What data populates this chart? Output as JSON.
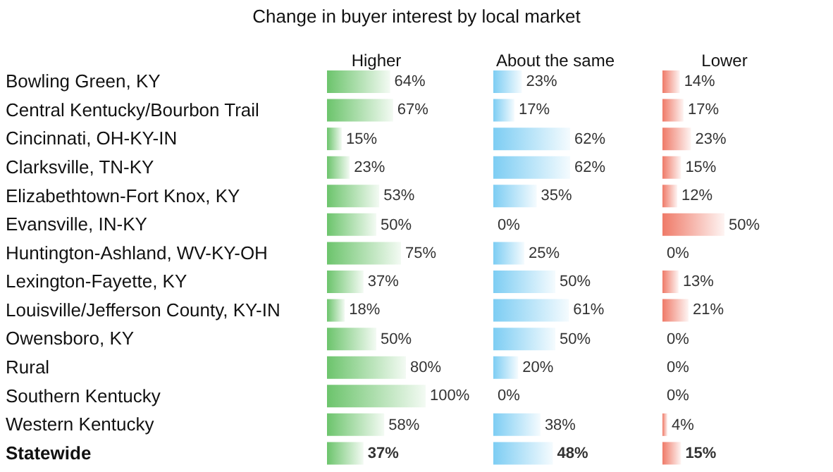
{
  "chart_data": [
    {
      "type": "bar",
      "orientation": "horizontal",
      "title": "Change in buyer interest by local market",
      "xlabel": "Higher",
      "tick_labels": "y",
      "color": "#6cc46c",
      "categories": [
        "Bowling Green, KY",
        "Central Kentucky/Bourbon Trail",
        "Cincinnati, OH-KY-IN",
        "Clarksville, TN-KY",
        "Elizabethtown-Fort Knox, KY",
        "Evansville, IN-KY",
        "Huntington-Ashland, WV-KY-OH",
        "Lexington-Fayette, KY",
        "Louisville/Jefferson County, KY-IN",
        "Owensboro, KY",
        "Rural",
        "Southern Kentucky",
        "Western Kentucky",
        "Statewide"
      ],
      "values": [
        64,
        67,
        15,
        23,
        53,
        50,
        75,
        37,
        18,
        50,
        80,
        100,
        58,
        37
      ],
      "value_labels": [
        "64%",
        "67%",
        "15%",
        "23%",
        "53%",
        "50%",
        "75%",
        "37%",
        "18%",
        "50%",
        "80%",
        "100%",
        "58%",
        "37%"
      ]
    },
    {
      "type": "bar",
      "orientation": "horizontal",
      "xlabel": "About the same",
      "tick_labels": false,
      "color": "#7dcdf3",
      "values": [
        23,
        17,
        62,
        62,
        35,
        0,
        25,
        50,
        61,
        50,
        20,
        0,
        38,
        48
      ],
      "value_labels": [
        "23%",
        "17%",
        "62%",
        "62%",
        "35%",
        "0%",
        "25%",
        "50%",
        "61%",
        "50%",
        "20%",
        "0%",
        "38%",
        "48%"
      ]
    },
    {
      "type": "bar",
      "orientation": "horizontal",
      "xlabel": "Lower",
      "tick_labels": false,
      "color": "#ef7a68",
      "values": [
        14,
        17,
        23,
        15,
        12,
        50,
        0,
        13,
        21,
        0,
        0,
        0,
        4,
        15
      ],
      "value_labels": [
        "14%",
        "17%",
        "23%",
        "15%",
        "12%",
        "50%",
        "0%",
        "13%",
        "21%",
        "0%",
        "0%",
        "0%",
        "4%",
        "15%"
      ]
    }
  ]
}
